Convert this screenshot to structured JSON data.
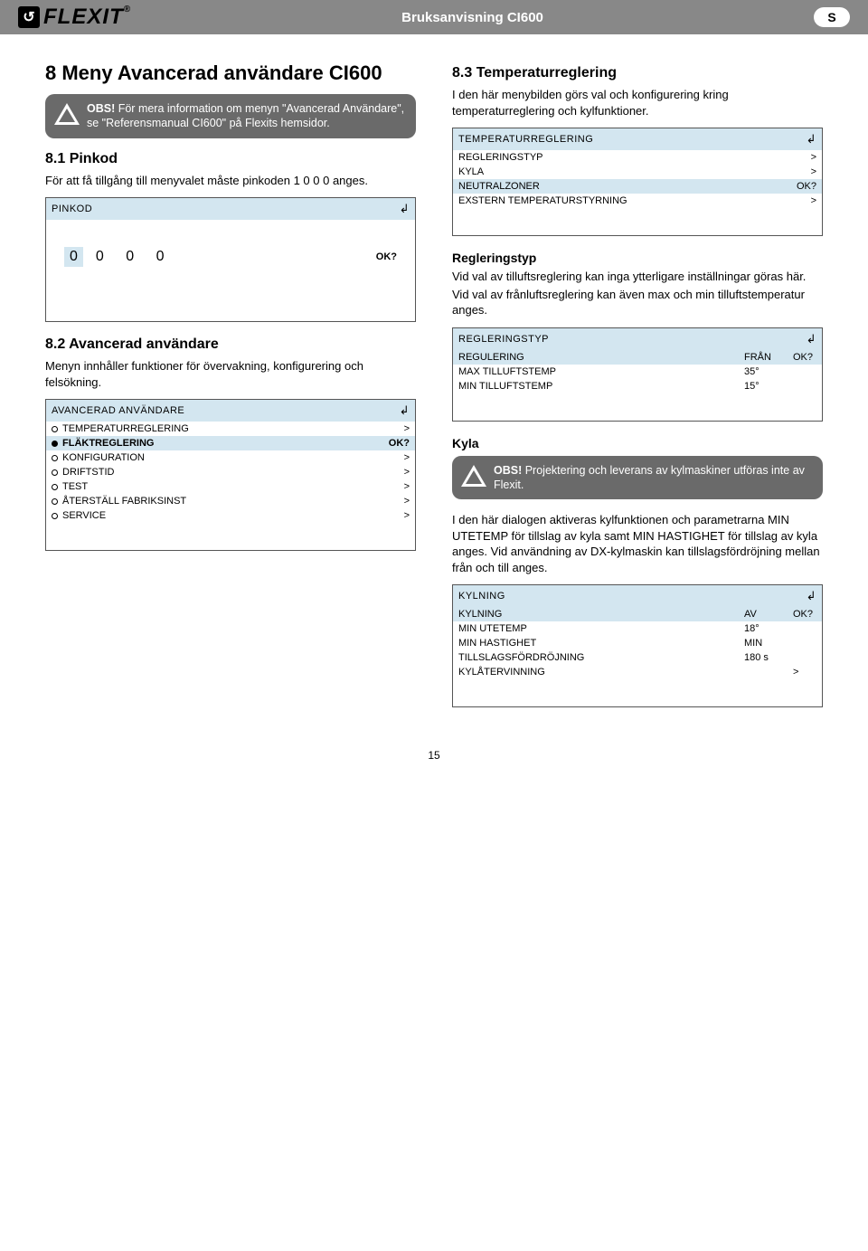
{
  "header": {
    "logo_text": "FLEXIT",
    "doc_title": "Bruksanvisning CI600",
    "lang_badge": "S"
  },
  "left": {
    "h1": "8  Meny Avancerad användare CI600",
    "obs1": {
      "bold": "OBS!",
      "rest": " För mera information om menyn \"Avancerad Användare\", se \"Referensmanual CI600\" på Flexits hemsidor."
    },
    "s81_h": "8.1  Pinkod",
    "s81_p": "För att få tillgång till menyvalet måste pinkoden 1 0 0 0 anges.",
    "pinkod": {
      "title": "PINKOD",
      "digits_first": "0",
      "digits_rest": "0  0  0",
      "ok": "OK?"
    },
    "s82_h": "8.2  Avancerad användare",
    "s82_p": "Menyn innhåller funktioner för övervakning, konfigurering och felsökning.",
    "avancerad": {
      "title": "AVANCERAD ANVÄNDARE",
      "items": [
        {
          "label": "TEMPERATURREGLERING",
          "val": ">",
          "sel": false
        },
        {
          "label": "FLÄKTREGLERING",
          "val": "OK?",
          "sel": true
        },
        {
          "label": "KONFIGURATION",
          "val": ">",
          "sel": false
        },
        {
          "label": "DRIFTSTID",
          "val": ">",
          "sel": false
        },
        {
          "label": "TEST",
          "val": ">",
          "sel": false
        },
        {
          "label": "ÅTERSTÄLL FABRIKSINST",
          "val": ">",
          "sel": false
        },
        {
          "label": "SERVICE",
          "val": ">",
          "sel": false
        }
      ]
    }
  },
  "right": {
    "s83_h": "8.3  Temperaturreglering",
    "s83_p": "I den här menybilden görs val och konfigurering kring temperaturreglering och kylfunktioner.",
    "tempreg": {
      "title": "TEMPERATURREGLERING",
      "rows": [
        {
          "label": "REGLERINGSTYP",
          "val": ">",
          "hl": false
        },
        {
          "label": "KYLA",
          "val": ">",
          "hl": false
        },
        {
          "label": "NEUTRALZONER",
          "val": "OK?",
          "hl": true
        },
        {
          "label": "EXSTERN TEMPERATURSTYRNING",
          "val": ">",
          "hl": false
        }
      ]
    },
    "regtyp_h": "Regleringstyp",
    "regtyp_p1": "Vid val av tilluftsreglering kan inga ytterligare inställningar göras här.",
    "regtyp_p2": "Vid val av frånluftsreglering kan även max och min tilluftstemperatur anges.",
    "regtyp_screen": {
      "title": "REGLERINGSTYP",
      "rows": [
        {
          "label": "REGULERING",
          "v1": "FRÅN",
          "v2": "OK?",
          "hl": true
        },
        {
          "label": "MAX TILLUFTSTEMP",
          "v1": "35°",
          "v2": "",
          "hl": false
        },
        {
          "label": "MIN TILLUFTSTEMP",
          "v1": "15°",
          "v2": "",
          "hl": false
        }
      ]
    },
    "kyla_h": "Kyla",
    "obs2": {
      "bold": "OBS!",
      "rest": " Projektering och leverans av kylmaskiner utföras inte av Flexit."
    },
    "kyla_p": "I den här dialogen aktiveras kylfunktionen och parametrarna MIN UTETEMP för tillslag av kyla samt MIN HASTIGHET för tillslag av kyla anges. Vid användning av DX-kylmaskin kan tillslagsfördröjning mellan från och till anges.",
    "kylning": {
      "title": "KYLNING",
      "rows": [
        {
          "label": "KYLNING",
          "v1": "AV",
          "v2": "OK?",
          "hl": true
        },
        {
          "label": "MIN UTETEMP",
          "v1": "18°",
          "v2": "",
          "hl": false
        },
        {
          "label": "MIN HASTIGHET",
          "v1": "MIN",
          "v2": "",
          "hl": false
        },
        {
          "label": "TILLSLAGSFÖRDRÖJNING",
          "v1": "180 s",
          "v2": "",
          "hl": false
        },
        {
          "label": "KYLÅTERVINNING",
          "v1": "",
          "v2": ">",
          "hl": false
        }
      ]
    }
  },
  "page_number": "15"
}
